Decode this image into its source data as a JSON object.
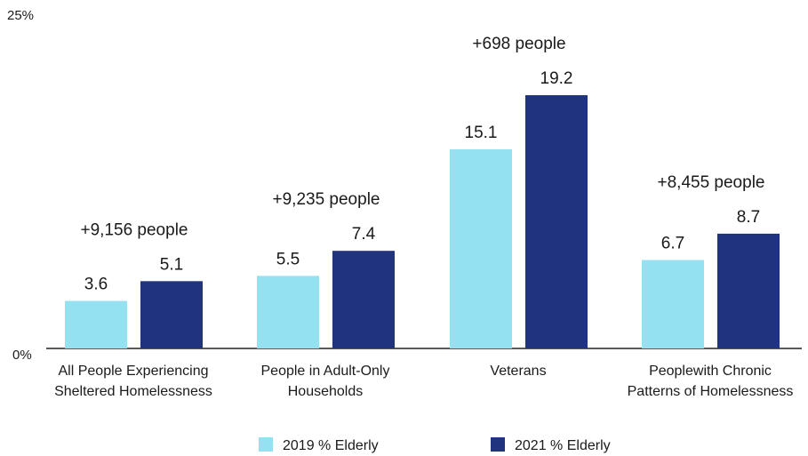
{
  "chart_data": {
    "type": "bar",
    "categories": [
      [
        "All People Experiencing",
        "Sheltered Homelessness"
      ],
      [
        "People in Adult-Only",
        "Households"
      ],
      [
        "Veterans"
      ],
      [
        "Peoplewith Chronic",
        "Patterns of Homelessness"
      ]
    ],
    "series": [
      {
        "name": "2019 % Elderly",
        "values": [
          3.6,
          5.5,
          15.1,
          6.7
        ],
        "color": "#93e1f1"
      },
      {
        "name": "2021 % Elderly",
        "values": [
          5.1,
          7.4,
          19.2,
          8.7
        ],
        "color": "#1f347c"
      }
    ],
    "value_labels": [
      [
        "3.6",
        "5.5",
        "15.1",
        "6.7"
      ],
      [
        "5.1",
        "7.4",
        "19.2",
        "8.7"
      ]
    ],
    "annotations": [
      "+9,156 people",
      "+9,235 people",
      "+698 people",
      "+8,455 people"
    ],
    "ylim": [
      0,
      25
    ],
    "y_tick_labels": {
      "min": "0%",
      "max": "25%"
    },
    "title": "",
    "xlabel": "",
    "ylabel": "",
    "legend_position": "bottom-center",
    "grid": false,
    "axis_color": "#222222"
  }
}
